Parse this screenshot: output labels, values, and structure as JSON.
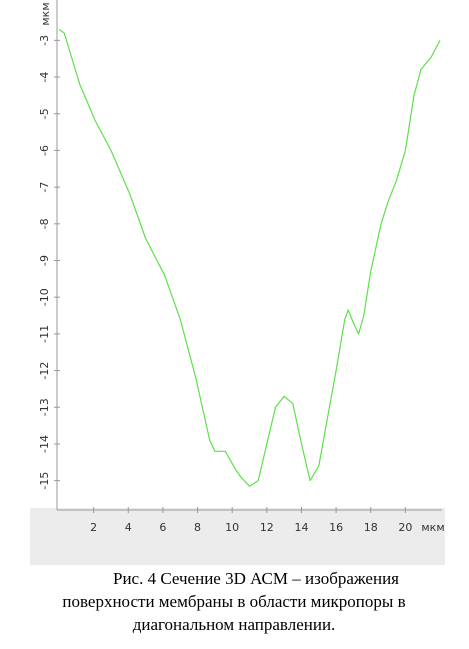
{
  "chart_data": {
    "type": "line",
    "y_label": "мкм",
    "x_label": "мкм",
    "x": [
      0,
      0.3,
      1.2,
      2.1,
      3,
      4.1,
      5,
      6.1,
      7,
      7.9,
      8.7,
      9,
      9.6,
      10.2,
      10.5,
      11,
      11.5,
      12,
      12.5,
      13,
      13.5,
      14,
      14.5,
      15,
      15.5,
      16,
      16.5,
      16.7,
      17,
      17.3,
      17.6,
      18,
      18.6,
      19,
      19.5,
      20,
      20.5,
      20.9,
      21.5,
      22
    ],
    "values": [
      -2.7,
      -2.8,
      -4.2,
      -5.2,
      -6.0,
      -7.2,
      -8.4,
      -9.4,
      -10.6,
      -12.2,
      -13.9,
      -14.2,
      -14.2,
      -14.7,
      -14.9,
      -15.15,
      -15.0,
      -14.0,
      -13.0,
      -12.7,
      -12.9,
      -14.0,
      -15.0,
      -14.6,
      -13.3,
      -12.0,
      -10.6,
      -10.35,
      -10.7,
      -11.0,
      -10.5,
      -9.3,
      -8.0,
      -7.4,
      -6.8,
      -6.0,
      -4.5,
      -3.8,
      -3.45,
      -3.0
    ],
    "color": "#5ee04a",
    "xlim": [
      0,
      22
    ],
    "xticks": [
      2,
      4,
      6,
      8,
      10,
      12,
      14,
      16,
      18,
      20
    ],
    "ylim": [
      -15.8,
      -1.9
    ],
    "yticks": [
      -3,
      -4,
      -5,
      -6,
      -7,
      -8,
      -9,
      -10,
      -11,
      -12,
      -13,
      -14,
      -15
    ]
  },
  "caption": [
    "Рис. 4 Сечение 3D АСМ – изображения",
    "поверхности мембраны в области микропоры в",
    "диагональном направлении."
  ]
}
